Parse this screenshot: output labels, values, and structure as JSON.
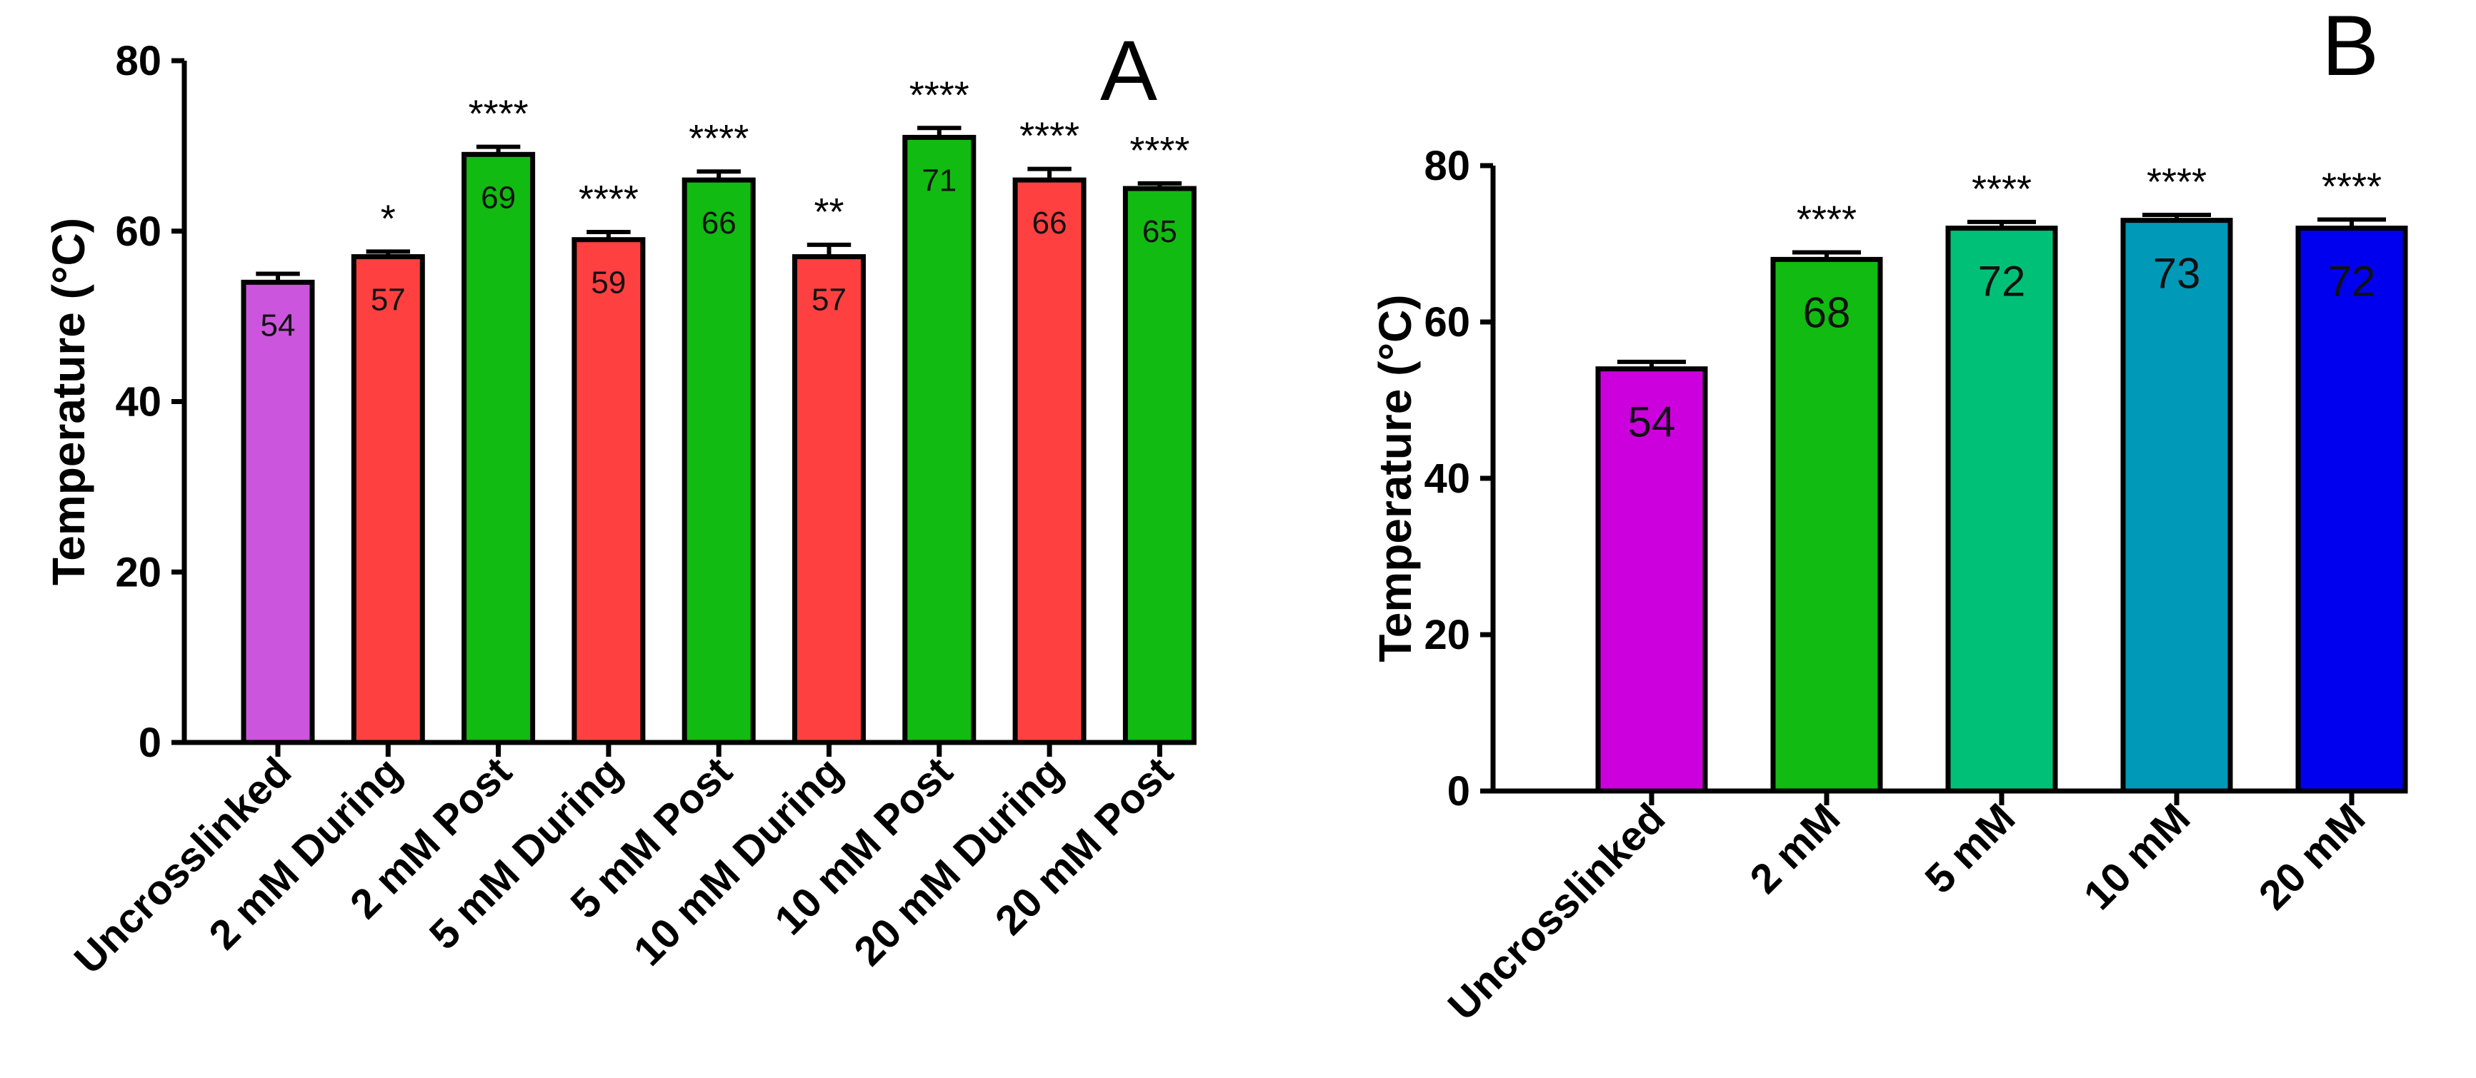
{
  "chart_data": [
    {
      "type": "bar",
      "panel_label": "A",
      "ylabel": "Temperature (°C)",
      "ylim": [
        0,
        80
      ],
      "yticks": [
        0,
        20,
        40,
        60,
        80
      ],
      "categories": [
        "Uncrosslinked",
        "2 mM During",
        "2 mM Post",
        "5 mM During",
        "5 mM Post",
        "10 mM During",
        "10 mM Post",
        "20 mM During",
        "20 mM Post"
      ],
      "values": [
        54,
        57,
        69,
        59,
        66,
        57,
        71,
        66,
        65
      ],
      "value_labels": [
        "54",
        "57",
        "69",
        "59",
        "66",
        "57",
        "71",
        "66",
        "65"
      ],
      "error": [
        1.0,
        0.6,
        0.9,
        0.9,
        1.0,
        1.4,
        1.1,
        1.3,
        0.6
      ],
      "significance": [
        "",
        "*",
        "****",
        "****",
        "****",
        "**",
        "****",
        "****",
        "****"
      ],
      "colors": [
        "#cc55dd",
        "#ff4040",
        "#11bb11",
        "#ff4040",
        "#11bb11",
        "#ff4040",
        "#11bb11",
        "#ff4040",
        "#11bb11"
      ]
    },
    {
      "type": "bar",
      "panel_label": "B",
      "ylabel": "Temperature (°C)",
      "ylim": [
        0,
        80
      ],
      "yticks": [
        0,
        20,
        40,
        60,
        80
      ],
      "categories": [
        "Uncrosslinked",
        "2 mM",
        "5 mM",
        "10 mM",
        "20 mM"
      ],
      "values": [
        54,
        68,
        72,
        73,
        72
      ],
      "value_labels": [
        "54",
        "68",
        "72",
        "73",
        "72"
      ],
      "error": [
        0.9,
        0.9,
        0.8,
        0.7,
        1.1
      ],
      "significance": [
        "",
        "****",
        "****",
        "****",
        "****"
      ],
      "colors": [
        "#cc00dd",
        "#11bb11",
        "#00c078",
        "#0099b8",
        "#0000ee"
      ]
    }
  ]
}
